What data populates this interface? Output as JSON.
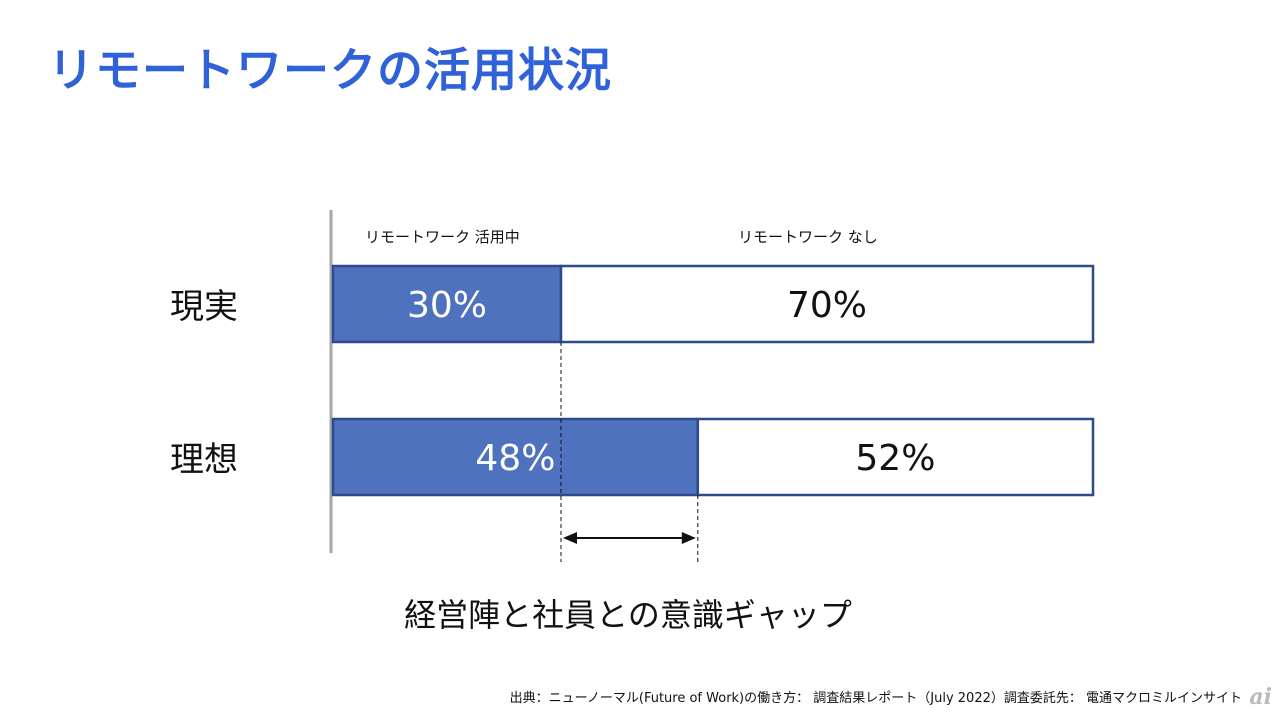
{
  "title": "リモートワークの活用状況",
  "chart_data": {
    "type": "bar",
    "orientation": "horizontal-stacked-100",
    "categories": [
      "現実",
      "理想"
    ],
    "series": [
      {
        "name": "リモートワーク 活用中",
        "values": [
          30,
          48
        ],
        "labels": [
          "30%",
          "48%"
        ]
      },
      {
        "name": "リモートワーク なし",
        "values": [
          70,
          52
        ],
        "labels": [
          "70%",
          "52%"
        ]
      }
    ],
    "xlim": [
      0,
      100
    ],
    "annotation": "経営陣と社員との意識ギャップ"
  },
  "colors": {
    "active": "#4e72bd",
    "border": "#2e4a8c",
    "title": "#2f62d8"
  },
  "source": "出典：ニューノーマル(Future of Work)の働き方： 調査結果レポート（July 2022）調査委託先： 電通マクロミルインサイト",
  "logo": "ai"
}
